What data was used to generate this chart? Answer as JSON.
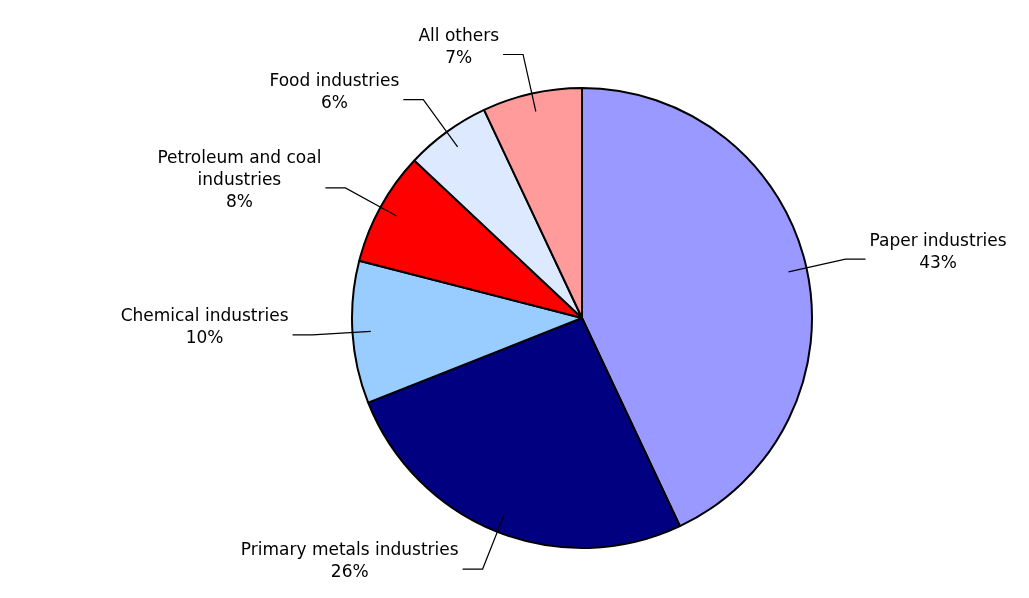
{
  "chart_data": {
    "type": "pie",
    "categories": [
      "Paper industries",
      "Primary metals industries",
      "Chemical industries",
      "Petroleum and coal industries",
      "Food industries",
      "All others"
    ],
    "values": [
      43,
      26,
      10,
      8,
      6,
      7
    ],
    "value_labels": [
      "43%",
      "26%",
      "10%",
      "8%",
      "6%",
      "7%"
    ],
    "colors": [
      "#9999ff",
      "#000080",
      "#99ccff",
      "#ff0000",
      "#dde9ff",
      "#ff9b9b"
    ],
    "legend": false
  }
}
